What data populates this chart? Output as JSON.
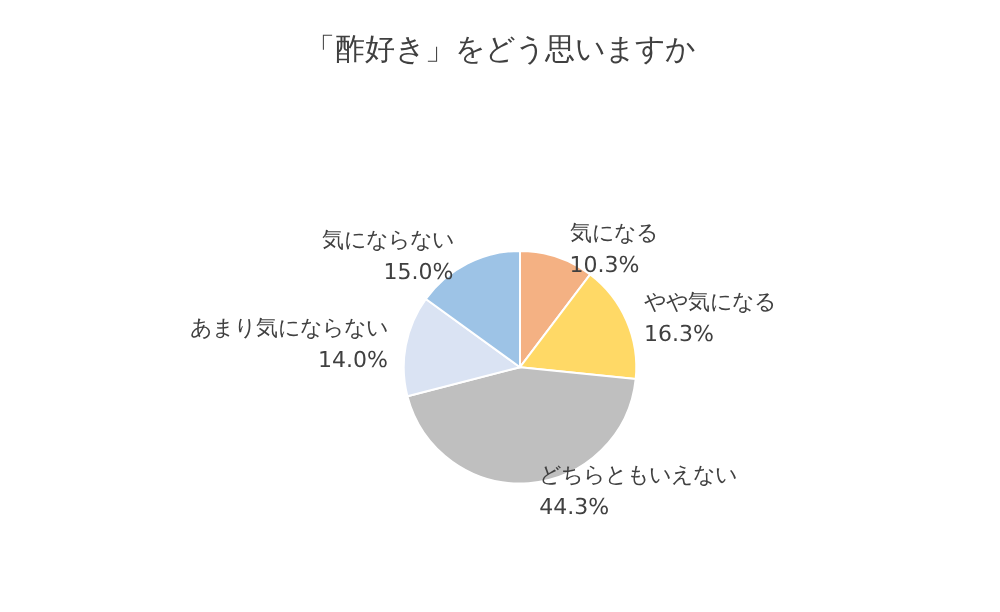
{
  "chart_data": {
    "type": "pie",
    "title": "「酢好き」をどう思いますか",
    "categories": [
      "気になる",
      "やや気になる",
      "どちらともいえない",
      "あまり気にならない",
      "気にならない"
    ],
    "values": [
      10.3,
      16.3,
      44.3,
      14.0,
      15.0
    ],
    "value_labels": [
      "10.3%",
      "16.3%",
      "44.3%",
      "14.0%",
      "15.0%"
    ],
    "colors": [
      "#f4b183",
      "#ffd966",
      "#bfbfbf",
      "#dae3f3",
      "#9dc3e6"
    ],
    "legend": false
  }
}
